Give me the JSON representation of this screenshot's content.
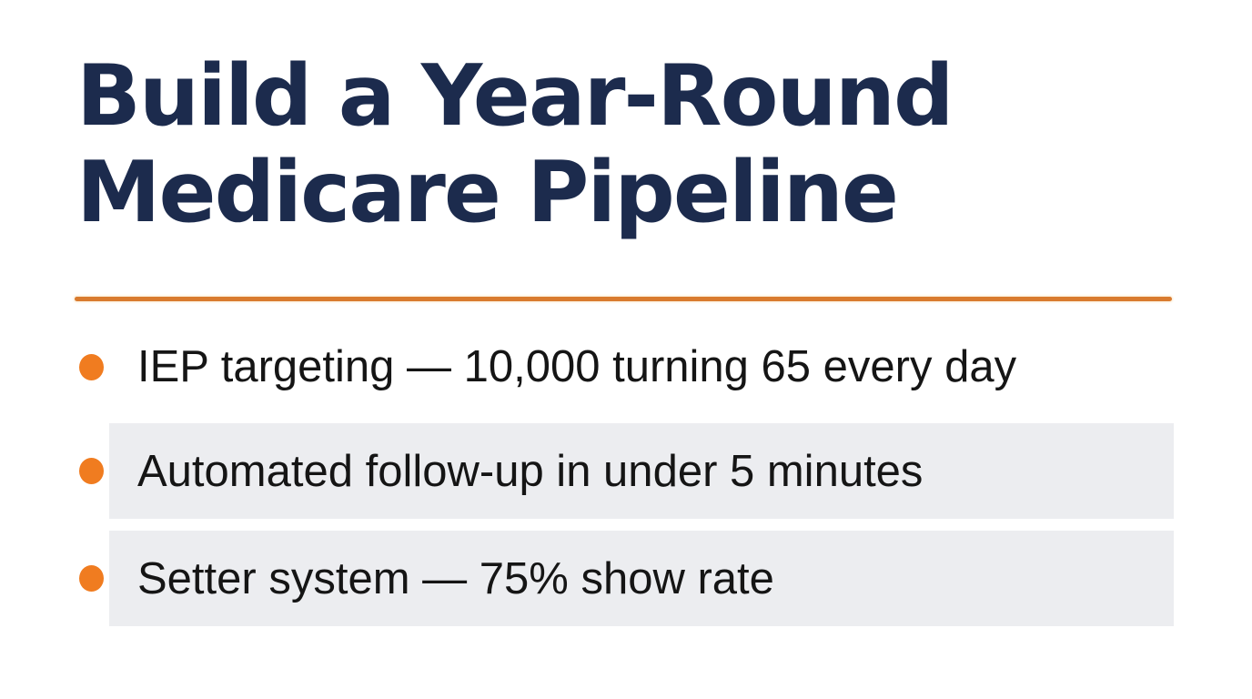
{
  "slide": {
    "title": {
      "line1": "Build a Year-Round",
      "line2": "Medicare Pipeline"
    },
    "bullets": [
      {
        "text": "IEP targeting — 10,000 turning 65 every day",
        "highlighted": false
      },
      {
        "text": "Automated follow-up in under 5 minutes",
        "highlighted": true
      },
      {
        "text": "Setter system — 75% show rate",
        "highlighted": true
      }
    ],
    "colors": {
      "title_navy": "#1c2b4d",
      "bullet_orange": "#f07c20",
      "divider_orange": "#d97b2f",
      "highlight_gray": "#ecedf0",
      "body_text": "#151515",
      "background": "#ffffff"
    }
  }
}
